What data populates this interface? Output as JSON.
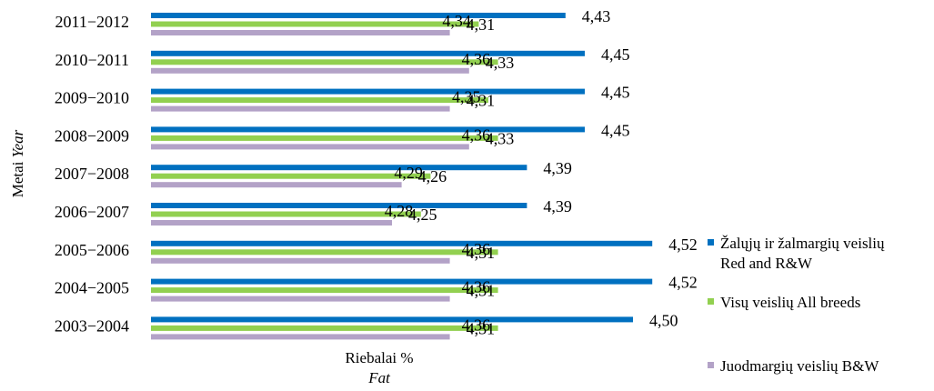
{
  "chart_data": {
    "type": "bar",
    "orientation": "horizontal",
    "categories": [
      "2011−2012",
      "2010−2011",
      "2009−2010",
      "2008−2009",
      "2007−2008",
      "2006−2007",
      "2005−2006",
      "2004−2005",
      "2003−2004"
    ],
    "series": [
      {
        "name_line1": "Žalųjų ir žalmargių veislių",
        "name_line2": "Red and R&W",
        "color": "#0070C0",
        "values": [
          4.43,
          4.45,
          4.45,
          4.45,
          4.39,
          4.39,
          4.52,
          4.52,
          4.5
        ],
        "labels": [
          "4,43",
          "4,45",
          "4,45",
          "4,45",
          "4,39",
          "4,39",
          "4,52",
          "4,52",
          "4,50"
        ]
      },
      {
        "name_line1": "Visų veislių All breeds",
        "name_line2": "",
        "color": "#92D050",
        "values": [
          4.34,
          4.36,
          4.35,
          4.36,
          4.29,
          4.28,
          4.36,
          4.36,
          4.36
        ],
        "labels": [
          "4,34",
          "4,36",
          "4,35",
          "4,36",
          "4,29",
          "4,28",
          "4,36",
          "4,36",
          "4,36"
        ]
      },
      {
        "name_line1": "Juodmargių veislių B&W",
        "name_line2": "",
        "color": "#B3A2C7",
        "values": [
          4.31,
          4.33,
          4.31,
          4.33,
          4.26,
          4.25,
          4.31,
          4.31,
          4.31
        ],
        "labels": [
          "4,31",
          "4,33",
          "4,31",
          "4,33",
          "4,26",
          "4,25",
          "4,31",
          "4,31",
          "4,31"
        ]
      }
    ],
    "xlabel_line1": "Riebalai %",
    "xlabel_line2": "Fat",
    "ylabel_main": "Metai ",
    "ylabel_italic": "Year",
    "legend_position": "right",
    "grid": false
  }
}
